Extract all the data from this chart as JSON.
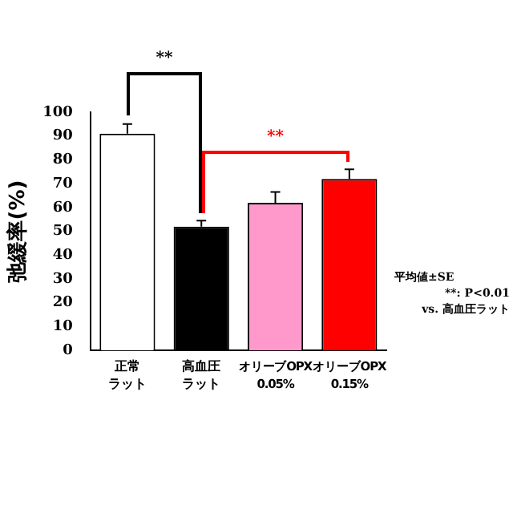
{
  "chart_data": {
    "type": "bar",
    "ylabel": "弛緩率(%)",
    "categories": [
      "正常ラット",
      "高血圧ラット",
      "オリーブOPX 0.05%",
      "オリーブOPX 0.15%"
    ],
    "values": [
      91,
      52,
      62,
      72
    ],
    "errors": [
      4,
      2.5,
      4.5,
      4
    ],
    "colors": [
      "#ffffff",
      "#000000",
      "#ff99cc",
      "#ff0000"
    ],
    "ylim": [
      0,
      100
    ],
    "yticks": [
      0,
      10,
      20,
      30,
      40,
      50,
      60,
      70,
      80,
      90,
      100
    ],
    "grid": false,
    "legend": false,
    "annotations": [
      "**",
      "**",
      "平均値±SE",
      "**: P<0.01",
      "vs. 高血圧ラット"
    ]
  }
}
